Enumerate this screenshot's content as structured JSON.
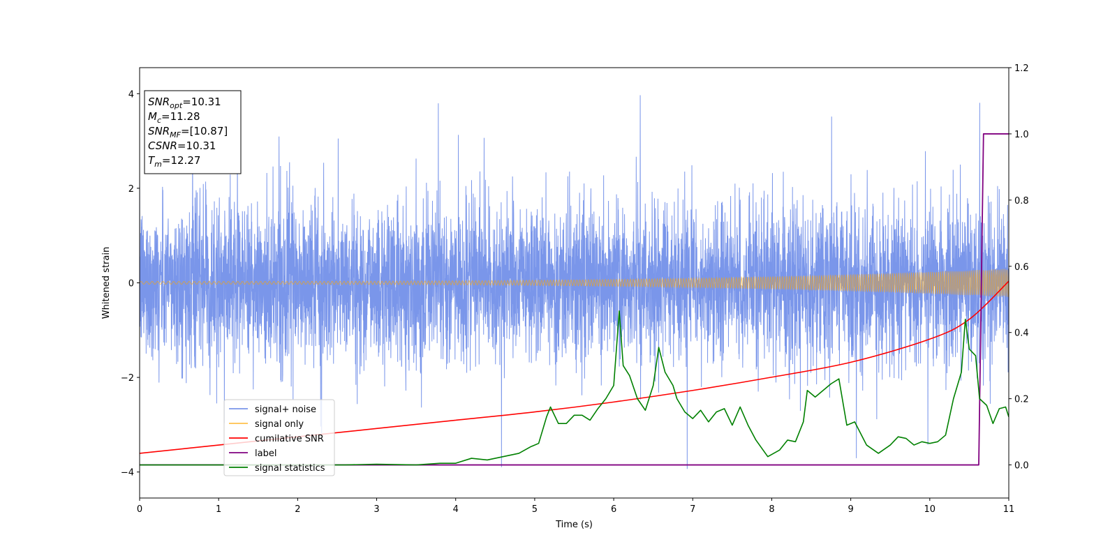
{
  "chart_data": {
    "type": "line",
    "xlabel": "Time (s)",
    "ylabel": "Whitened strain",
    "xlim": [
      0,
      11
    ],
    "ylim_left": [
      -4.55,
      4.55
    ],
    "ylim_right": [
      -0.1,
      1.2
    ],
    "x_ticks": [
      "0",
      "1",
      "2",
      "3",
      "4",
      "5",
      "6",
      "7",
      "8",
      "9",
      "10",
      "11"
    ],
    "y_ticks_left": [
      "−4",
      "−2",
      "0",
      "2",
      "4"
    ],
    "y_ticks_right": [
      "0.0",
      "0.2",
      "0.4",
      "0.6",
      "0.8",
      "1.0",
      "1.2"
    ],
    "grid": false,
    "legend_position": "lower-left",
    "annotation": {
      "position": "upper-left",
      "lines": [
        {
          "var": "SNR",
          "sub": "opt",
          "value": "=10.31"
        },
        {
          "var": "M",
          "sub": "c",
          "value": "=11.28"
        },
        {
          "var": "SNR",
          "sub": "MF",
          "value": "=[10.87]"
        },
        {
          "var": "CSNR",
          "sub": "",
          "value": "=10.31"
        },
        {
          "var": "T",
          "sub": "m",
          "value": "=12.27"
        }
      ]
    },
    "series": [
      {
        "name": "signal+ noise",
        "color": "#4169e1",
        "axis": "left",
        "style": "gaussian noise around 0, approx. ±1.8 envelope, spikes to about ±4",
        "range": [
          -4.15,
          4.1
        ]
      },
      {
        "name": "signal only",
        "color": "#ffa500",
        "axis": "left",
        "style": "chirp oscillation around 0 with growing amplitude",
        "amplitude_start": 0.03,
        "amplitude_end": 0.3
      },
      {
        "name": "cumilative SNR",
        "color": "#ff0000",
        "axis": "right",
        "x": [
          0,
          1,
          2,
          3,
          4,
          5,
          6,
          7,
          8,
          9,
          10,
          10.5,
          11
        ],
        "y": [
          0.035,
          0.06,
          0.085,
          0.11,
          0.135,
          0.16,
          0.19,
          0.225,
          0.265,
          0.31,
          0.38,
          0.44,
          0.555
        ]
      },
      {
        "name": "label",
        "color": "#800080",
        "axis": "right",
        "x": [
          0,
          10.62,
          10.68,
          11
        ],
        "y": [
          0,
          0,
          1,
          1
        ]
      },
      {
        "name": "signal statistics",
        "color": "#008000",
        "axis": "right",
        "x": [
          0,
          1,
          2,
          2.6,
          3.0,
          3.5,
          3.8,
          4.0,
          4.2,
          4.4,
          4.6,
          4.8,
          4.95,
          5.05,
          5.15,
          5.2,
          5.3,
          5.4,
          5.5,
          5.6,
          5.7,
          5.8,
          5.9,
          6.0,
          6.07,
          6.12,
          6.2,
          6.3,
          6.4,
          6.5,
          6.57,
          6.65,
          6.75,
          6.8,
          6.9,
          7.0,
          7.1,
          7.2,
          7.3,
          7.4,
          7.5,
          7.6,
          7.7,
          7.8,
          7.95,
          8.1,
          8.2,
          8.3,
          8.4,
          8.45,
          8.55,
          8.65,
          8.75,
          8.85,
          8.95,
          9.05,
          9.2,
          9.35,
          9.5,
          9.6,
          9.7,
          9.8,
          9.9,
          10.0,
          10.1,
          10.2,
          10.3,
          10.4,
          10.45,
          10.5,
          10.58,
          10.63,
          10.72,
          10.8,
          10.88,
          10.96,
          11.0
        ],
        "y": [
          0.0,
          0.0,
          0.0,
          0.0,
          0.002,
          0.0,
          0.005,
          0.005,
          0.02,
          0.015,
          0.025,
          0.035,
          0.055,
          0.065,
          0.145,
          0.175,
          0.125,
          0.125,
          0.15,
          0.15,
          0.135,
          0.17,
          0.2,
          0.24,
          0.465,
          0.3,
          0.27,
          0.2,
          0.165,
          0.24,
          0.355,
          0.28,
          0.24,
          0.2,
          0.16,
          0.14,
          0.165,
          0.13,
          0.16,
          0.17,
          0.12,
          0.175,
          0.12,
          0.075,
          0.025,
          0.045,
          0.075,
          0.07,
          0.13,
          0.225,
          0.205,
          0.225,
          0.245,
          0.26,
          0.12,
          0.13,
          0.06,
          0.035,
          0.06,
          0.085,
          0.08,
          0.06,
          0.07,
          0.065,
          0.07,
          0.09,
          0.2,
          0.28,
          0.44,
          0.35,
          0.33,
          0.2,
          0.18,
          0.125,
          0.17,
          0.175,
          0.145
        ]
      }
    ]
  }
}
